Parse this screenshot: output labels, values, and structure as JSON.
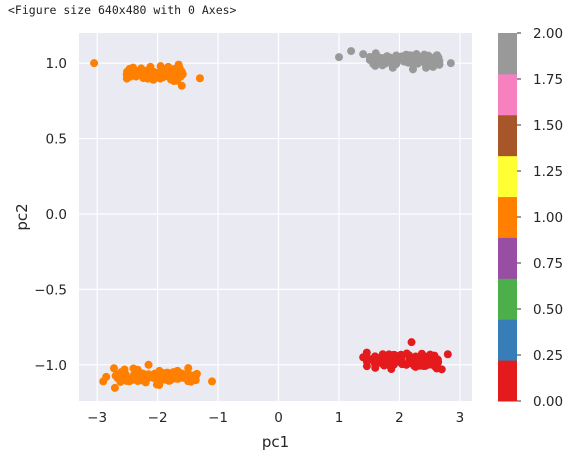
{
  "figure_header": "<Figure size 640x480 with 0 Axes>",
  "chart_data": {
    "type": "scatter",
    "xlabel": "pc1",
    "ylabel": "pc2",
    "xlim": [
      -3.3,
      3.2
    ],
    "ylim": [
      -1.24,
      1.2
    ],
    "xticks": [
      -3,
      -2,
      -1,
      0,
      1,
      2,
      3
    ],
    "xtick_labels": [
      "−3",
      "−2",
      "−1",
      "0",
      "1",
      "2",
      "3"
    ],
    "yticks": [
      -1.0,
      -0.5,
      0.0,
      0.5,
      1.0
    ],
    "ytick_labels": [
      "−1.0",
      "−0.5",
      "0.0",
      "0.5",
      "1.0"
    ],
    "grid": true,
    "background_color": "#EAEAF2",
    "colormap": "Set1",
    "colorbar": {
      "range": [
        0.0,
        2.0
      ],
      "ticks": [
        0.0,
        0.25,
        0.5,
        0.75,
        1.0,
        1.25,
        1.5,
        1.75,
        2.0
      ],
      "tick_labels": [
        "0.00",
        "0.25",
        "0.50",
        "0.75",
        "1.00",
        "1.25",
        "1.50",
        "1.75",
        "2.00"
      ],
      "colors": [
        "#e41a1c",
        "#377eb8",
        "#4daf4a",
        "#984ea3",
        "#ff7f00",
        "#ffff33",
        "#a65628",
        "#f781bf",
        "#999999"
      ]
    },
    "clusters": [
      {
        "label_value": 0.0,
        "color": "#e41a1c",
        "center": [
          2.05,
          -0.97
        ],
        "x_spread": 0.7,
        "y_spread": 0.04,
        "count": 110,
        "extra_points": [
          [
            1.4,
            -0.95
          ],
          [
            2.2,
            -0.85
          ],
          [
            2.8,
            -0.93
          ],
          [
            1.6,
            -1.02
          ],
          [
            2.7,
            -1.03
          ]
        ]
      },
      {
        "label_value": 1.0,
        "color": "#ff7f00",
        "center": [
          -2.05,
          0.93
        ],
        "x_spread": 0.55,
        "y_spread": 0.035,
        "count": 90,
        "extra_points": [
          [
            -3.05,
            1.0
          ],
          [
            -1.3,
            0.9
          ],
          [
            -1.6,
            0.85
          ],
          [
            -2.4,
            0.96
          ],
          [
            -1.95,
            0.98
          ]
        ]
      },
      {
        "label_value": 1.0,
        "color": "#ff7f00",
        "center": [
          -2.0,
          -1.08
        ],
        "x_spread": 0.85,
        "y_spread": 0.035,
        "count": 100,
        "extra_points": [
          [
            -2.9,
            -1.11
          ],
          [
            -1.1,
            -1.11
          ],
          [
            -2.15,
            -1.0
          ],
          [
            -1.35,
            -1.06
          ],
          [
            -2.85,
            -1.08
          ]
        ]
      },
      {
        "label_value": 2.0,
        "color": "#999999",
        "center": [
          2.1,
          1.02
        ],
        "x_spread": 0.7,
        "y_spread": 0.035,
        "count": 100,
        "extra_points": [
          [
            1.0,
            1.04
          ],
          [
            1.2,
            1.08
          ],
          [
            2.85,
            1.0
          ],
          [
            1.4,
            1.06
          ],
          [
            2.6,
            1.04
          ]
        ]
      }
    ]
  }
}
